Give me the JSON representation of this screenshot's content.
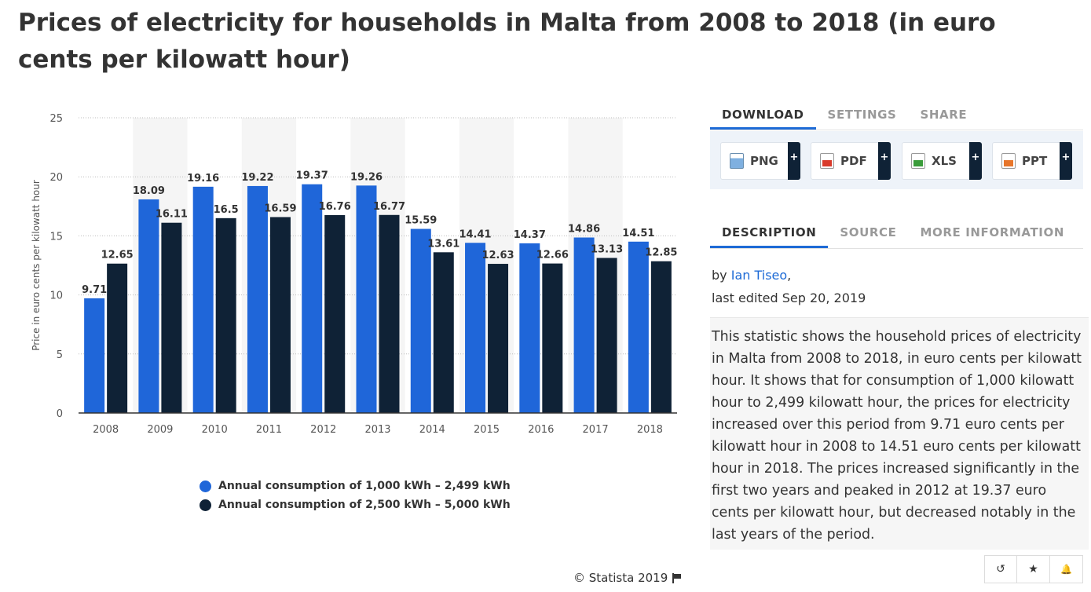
{
  "title": "Prices of electricity for households in Malta from 2008 to 2018 (in euro cents per kilowatt hour)",
  "chart_data": {
    "type": "bar",
    "categories": [
      "2008",
      "2009",
      "2010",
      "2011",
      "2012",
      "2013",
      "2014",
      "2015",
      "2016",
      "2017",
      "2018"
    ],
    "series": [
      {
        "name": "Annual consumption of 1,000 kWh – 2,499 kWh",
        "color": "#1f66d9",
        "values": [
          9.71,
          18.09,
          19.16,
          19.22,
          19.37,
          19.26,
          15.59,
          14.41,
          14.37,
          14.86,
          14.51
        ]
      },
      {
        "name": "Annual consumption of 2,500 kWh – 5,000 kWh",
        "color": "#0f2236",
        "values": [
          12.65,
          16.11,
          16.5,
          16.59,
          16.76,
          16.77,
          13.61,
          12.63,
          12.66,
          13.13,
          12.85
        ]
      }
    ],
    "ylabel": "Price in euro cents per kilowatt hour",
    "xlabel": "",
    "ylim": [
      0,
      25
    ],
    "yticks": [
      0,
      5,
      10,
      15,
      20,
      25
    ],
    "grid": true,
    "legend_position": "bottom"
  },
  "copyright": "© Statista 2019",
  "tabs_top": [
    "DOWNLOAD",
    "SETTINGS",
    "SHARE"
  ],
  "download_buttons": [
    {
      "label": "PNG",
      "icon": "png-file-icon",
      "plus": "+"
    },
    {
      "label": "PDF",
      "icon": "pdf-file-icon",
      "plus": "+"
    },
    {
      "label": "XLS",
      "icon": "xls-file-icon",
      "plus": "+"
    },
    {
      "label": "PPT",
      "icon": "ppt-file-icon",
      "plus": "+"
    }
  ],
  "tabs_desc": [
    "DESCRIPTION",
    "SOURCE",
    "MORE INFORMATION"
  ],
  "byline": {
    "prefix": "by ",
    "author": "Ian Tiseo",
    "suffix": ",",
    "edited": "last edited Sep 20, 2019"
  },
  "description": "This statistic shows the household prices of electricity in Malta from 2008 to 2018, in euro cents per kilowatt hour. It shows that for consumption of 1,000 kilowatt hour to 2,499 kilowatt hour, the prices for electricity increased over this period from 9.71 euro cents per kilowatt hour in 2008 to 14.51 euro cents per kilowatt hour in 2018. The prices increased significantly in the first two years and peaked in 2012 at 19.37 euro cents per kilowatt hour, but decreased notably in the last years of the period.",
  "actions": [
    {
      "icon": "history-icon",
      "glyph": "↺"
    },
    {
      "icon": "star-icon",
      "glyph": "★"
    },
    {
      "icon": "bell-icon",
      "glyph": "🔔"
    }
  ]
}
